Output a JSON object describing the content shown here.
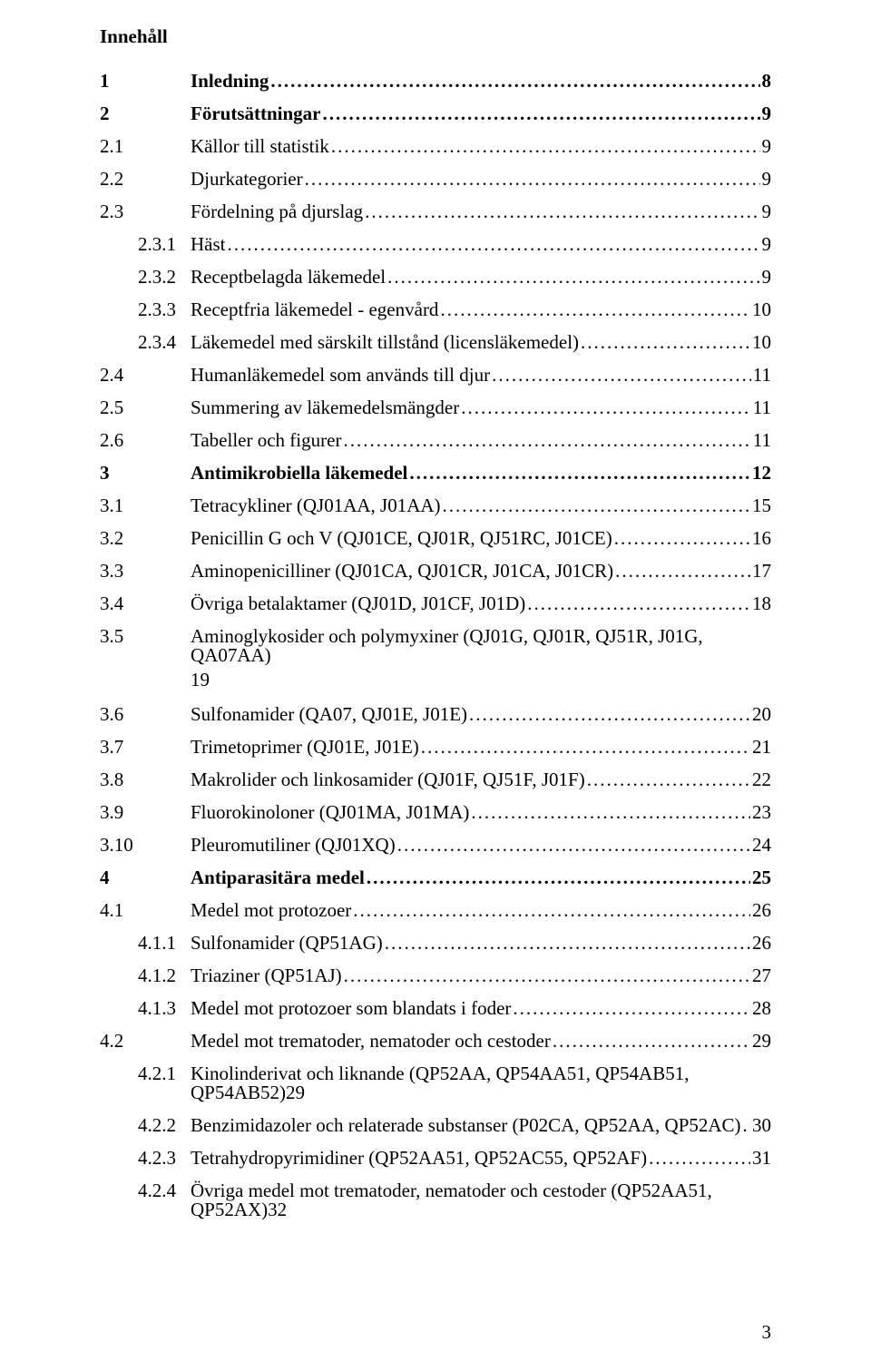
{
  "heading": "Innehåll",
  "page_number": "3",
  "entries": [
    {
      "level": 0,
      "bold": true,
      "num": "1",
      "title": "Inledning",
      "page": "8"
    },
    {
      "level": 0,
      "bold": true,
      "num": "2",
      "title": "Förutsättningar",
      "page": "9"
    },
    {
      "level": 1,
      "bold": false,
      "num": "2.1",
      "title": "Källor till statistik",
      "page": "9"
    },
    {
      "level": 1,
      "bold": false,
      "num": "2.2",
      "title": "Djurkategorier",
      "page": "9"
    },
    {
      "level": 1,
      "bold": false,
      "num": "2.3",
      "title": "Fördelning på djurslag",
      "page": "9"
    },
    {
      "level": 2,
      "bold": false,
      "num": "2.3.1",
      "title": "Häst",
      "page": "9"
    },
    {
      "level": 2,
      "bold": false,
      "num": "2.3.2",
      "title": "Receptbelagda läkemedel",
      "page": "9"
    },
    {
      "level": 2,
      "bold": false,
      "num": "2.3.3",
      "title": "Receptfria läkemedel - egenvård",
      "page": "10"
    },
    {
      "level": 2,
      "bold": false,
      "num": "2.3.4",
      "title": "Läkemedel med särskilt tillstånd (licensläkemedel)",
      "page": "10"
    },
    {
      "level": 1,
      "bold": false,
      "num": "2.4",
      "title": "Humanläkemedel som används till djur",
      "page": "11"
    },
    {
      "level": 1,
      "bold": false,
      "num": "2.5",
      "title": "Summering av läkemedelsmängder",
      "page": "11"
    },
    {
      "level": 1,
      "bold": false,
      "num": "2.6",
      "title": "Tabeller och figurer",
      "page": "11"
    },
    {
      "level": 0,
      "bold": true,
      "num": "3",
      "title": "Antimikrobiella läkemedel",
      "page": "12"
    },
    {
      "level": 1,
      "bold": false,
      "num": "3.1",
      "title": "Tetracykliner (QJ01AA, J01AA)",
      "page": "15"
    },
    {
      "level": 1,
      "bold": false,
      "num": "3.2",
      "title": "Penicillin G och V (QJ01CE, QJ01R, QJ51RC, J01CE)",
      "page": "16"
    },
    {
      "level": 1,
      "bold": false,
      "num": "3.3",
      "title": "Aminopenicilliner (QJ01CA, QJ01CR, J01CA, J01CR)",
      "page": "17"
    },
    {
      "level": 1,
      "bold": false,
      "num": "3.4",
      "title": "Övriga betalaktamer (QJ01D, J01CF, J01D)",
      "page": "18"
    },
    {
      "level": 1,
      "bold": false,
      "num": "3.5",
      "title": "Aminoglykosider och polymyxiner (QJ01G, QJ01R, QJ51R, J01G, QA07AA) 19",
      "page": "",
      "nodots": true
    },
    {
      "level": 1,
      "bold": false,
      "num": "3.6",
      "title": "Sulfonamider (QA07, QJ01E, J01E)",
      "page": "20"
    },
    {
      "level": 1,
      "bold": false,
      "num": "3.7",
      "title": "Trimetoprimer (QJ01E, J01E)",
      "page": "21"
    },
    {
      "level": 1,
      "bold": false,
      "num": "3.8",
      "title": "Makrolider och linkosamider (QJ01F, QJ51F, J01F)",
      "page": "22"
    },
    {
      "level": 1,
      "bold": false,
      "num": "3.9",
      "title": "Fluorokinoloner (QJ01MA, J01MA)",
      "page": "23"
    },
    {
      "level": 1,
      "bold": false,
      "num": "3.10",
      "title": "Pleuromutiliner (QJ01XQ)",
      "page": "24"
    },
    {
      "level": 0,
      "bold": true,
      "num": "4",
      "title": "Antiparasitära medel",
      "page": "25"
    },
    {
      "level": 1,
      "bold": false,
      "num": "4.1",
      "title": "Medel mot protozoer",
      "page": "26"
    },
    {
      "level": 2,
      "bold": false,
      "num": "4.1.1",
      "title": "Sulfonamider (QP51AG)",
      "page": "26"
    },
    {
      "level": 2,
      "bold": false,
      "num": "4.1.2",
      "title": "Triaziner (QP51AJ)",
      "page": "27"
    },
    {
      "level": 2,
      "bold": false,
      "num": "4.1.3",
      "title": "Medel mot protozoer som blandats i foder",
      "page": "28"
    },
    {
      "level": 1,
      "bold": false,
      "num": "4.2",
      "title": "Medel mot trematoder, nematoder och cestoder",
      "page": "29"
    },
    {
      "level": 2,
      "bold": false,
      "num": "4.2.1",
      "title": "Kinolinderivat och liknande (QP52AA, QP54AA51, QP54AB51, QP54AB52)29",
      "page": "",
      "nodots": true
    },
    {
      "level": 2,
      "bold": false,
      "num": "4.2.2",
      "title": "Benzimidazoler och relaterade substanser (P02CA, QP52AA, QP52AC)",
      "page": "30"
    },
    {
      "level": 2,
      "bold": false,
      "num": "4.2.3",
      "title": "Tetrahydropyrimidiner (QP52AA51, QP52AC55, QP52AF)",
      "page": "31"
    },
    {
      "level": 2,
      "bold": false,
      "num": "4.2.4",
      "title": "Övriga medel mot trematoder, nematoder och cestoder (QP52AA51, QP52AX)32",
      "page": "",
      "nodots": true
    }
  ],
  "special_3_5": {
    "num": "3.5",
    "line1": "Aminoglykosider och polymyxiner (QJ01G, QJ01R, QJ51R, J01G, QA07AA)",
    "line2": "19"
  }
}
